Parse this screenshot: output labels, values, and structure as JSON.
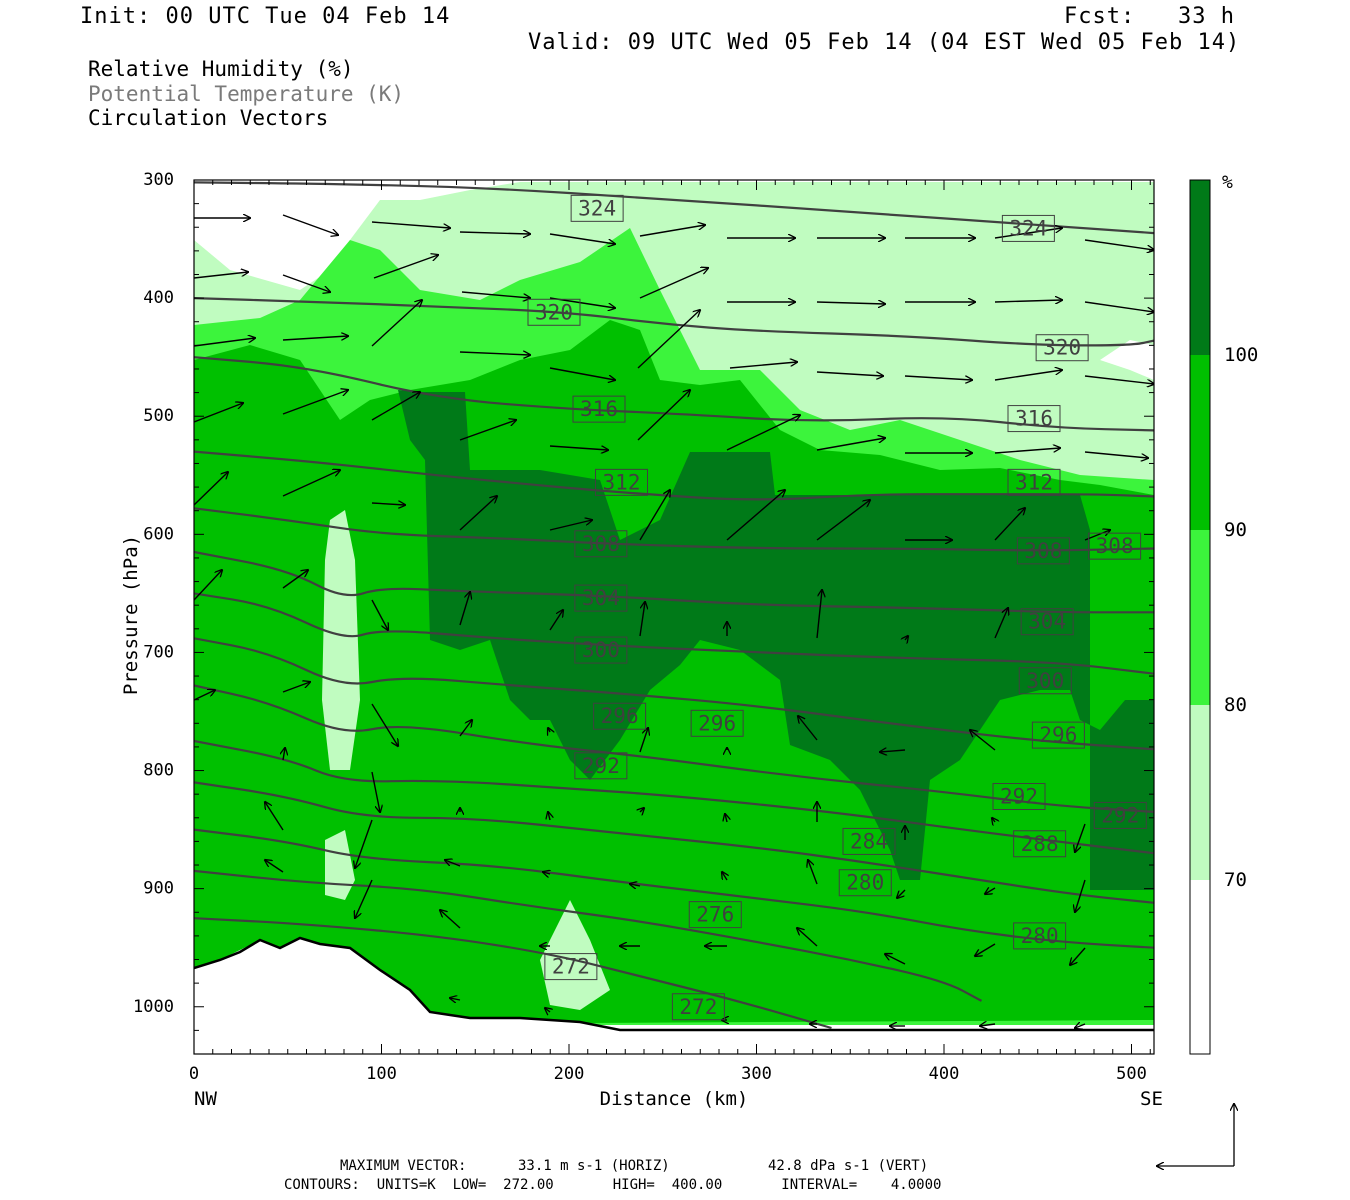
{
  "header": {
    "init": "Init: 00 UTC Tue 04 Feb 14",
    "fcst": "Fcst:   33 h",
    "valid": "Valid: 09 UTC Wed 05 Feb 14 (04 EST Wed 05 Feb 14)"
  },
  "fields": {
    "rh": "Relative Humidity (%)",
    "theta": "Potential Temperature (K)",
    "vectors": "Circulation Vectors"
  },
  "footer": {
    "vector_label": "MAXIMUM VECTOR:",
    "vector_horiz": "33.1 m s-1 (HORIZ)",
    "vector_vert": "42.8 dPa s-1 (VERT)",
    "contours": "CONTOURS:  UNITS=K  LOW=  272.00       HIGH=  400.00       INTERVAL=    4.0000"
  },
  "colors": {
    "rh_70_80": "#c0fcc0",
    "rh_80_90": "#3cf43c",
    "rh_90_100": "#00c000",
    "rh_100": "#007a18",
    "contour": "#404040",
    "vector": "#000000"
  },
  "chart_data": {
    "type": "heatmap",
    "xlabel": "Distance (km)",
    "ylabel": "Pressure (hPa)",
    "xlim": [
      0,
      512
    ],
    "ylim": [
      1040,
      300
    ],
    "x_ticks": [
      0,
      100,
      200,
      300,
      400,
      500
    ],
    "y_ticks": [
      300,
      400,
      500,
      600,
      700,
      800,
      900,
      1000
    ],
    "x_left_label": "NW",
    "x_right_label": "SE",
    "colorbar": {
      "unit": "%",
      "levels": [
        70,
        80,
        90,
        100
      ]
    },
    "contours": [
      {
        "value": 324,
        "label": "324",
        "points": [
          [
            0,
            302
          ],
          [
            60,
            303
          ],
          [
            150,
            306
          ],
          [
            250,
            316
          ],
          [
            350,
            327
          ],
          [
            450,
            338
          ],
          [
            512,
            345
          ]
        ],
        "labels_at": [
          [
            215,
            324
          ],
          [
            445,
            341
          ]
        ]
      },
      {
        "value": 320,
        "label": "320",
        "points": [
          [
            0,
            400
          ],
          [
            60,
            403
          ],
          [
            130,
            407
          ],
          [
            200,
            412
          ],
          [
            250,
            422
          ],
          [
            300,
            428
          ],
          [
            380,
            432
          ],
          [
            450,
            440
          ],
          [
            500,
            440
          ],
          [
            512,
            436
          ]
        ],
        "labels_at": [
          [
            192,
            412
          ],
          [
            463,
            442
          ]
        ]
      },
      {
        "value": 316,
        "label": "316",
        "points": [
          [
            0,
            450
          ],
          [
            60,
            458
          ],
          [
            130,
            485
          ],
          [
            200,
            494
          ],
          [
            260,
            498
          ],
          [
            330,
            505
          ],
          [
            400,
            500
          ],
          [
            460,
            510
          ],
          [
            512,
            512
          ]
        ],
        "labels_at": [
          [
            216,
            494
          ],
          [
            448,
            502
          ]
        ]
      },
      {
        "value": 312,
        "label": "312",
        "points": [
          [
            0,
            530
          ],
          [
            60,
            538
          ],
          [
            100,
            545
          ],
          [
            160,
            555
          ],
          [
            230,
            565
          ],
          [
            300,
            572
          ],
          [
            360,
            566
          ],
          [
            420,
            566
          ],
          [
            480,
            566
          ],
          [
            512,
            568
          ]
        ],
        "labels_at": [
          [
            228,
            556
          ],
          [
            448,
            556
          ]
        ]
      },
      {
        "value": 308,
        "label": "308",
        "points": [
          [
            0,
            578
          ],
          [
            50,
            588
          ],
          [
            100,
            600
          ],
          [
            160,
            603
          ],
          [
            220,
            608
          ],
          [
            300,
            612
          ],
          [
            380,
            612
          ],
          [
            450,
            614
          ],
          [
            512,
            612
          ]
        ],
        "labels_at": [
          [
            217,
            608
          ],
          [
            453,
            614
          ],
          [
            491,
            610
          ]
        ]
      },
      {
        "value": 304,
        "label": "304",
        "points": [
          [
            0,
            615
          ],
          [
            50,
            630
          ],
          [
            80,
            655
          ],
          [
            100,
            645
          ],
          [
            140,
            648
          ],
          [
            220,
            652
          ],
          [
            300,
            660
          ],
          [
            380,
            662
          ],
          [
            460,
            666
          ],
          [
            512,
            666
          ]
        ],
        "labels_at": [
          [
            217,
            654
          ],
          [
            455,
            674
          ]
        ]
      },
      {
        "value": 300,
        "label": "300",
        "points": [
          [
            0,
            650
          ],
          [
            40,
            660
          ],
          [
            80,
            690
          ],
          [
            100,
            680
          ],
          [
            160,
            688
          ],
          [
            220,
            694
          ],
          [
            300,
            700
          ],
          [
            380,
            705
          ],
          [
            460,
            708
          ],
          [
            512,
            718
          ]
        ],
        "labels_at": [
          [
            217,
            698
          ],
          [
            454,
            724
          ]
        ]
      },
      {
        "value": 296,
        "label": "296",
        "points": [
          [
            0,
            688
          ],
          [
            40,
            700
          ],
          [
            80,
            730
          ],
          [
            110,
            720
          ],
          [
            170,
            728
          ],
          [
            230,
            735
          ],
          [
            300,
            745
          ],
          [
            380,
            762
          ],
          [
            450,
            775
          ],
          [
            512,
            782
          ]
        ],
        "labels_at": [
          [
            227,
            754
          ],
          [
            279,
            760
          ],
          [
            461,
            770
          ]
        ]
      },
      {
        "value": 292,
        "label": "292",
        "points": [
          [
            0,
            728
          ],
          [
            40,
            742
          ],
          [
            80,
            770
          ],
          [
            110,
            760
          ],
          [
            180,
            778
          ],
          [
            240,
            788
          ],
          [
            320,
            805
          ],
          [
            400,
            818
          ],
          [
            460,
            830
          ],
          [
            512,
            835
          ]
        ],
        "labels_at": [
          [
            217,
            796
          ],
          [
            440,
            822
          ],
          [
            494,
            838
          ]
        ]
      },
      {
        "value": 288,
        "label": "288",
        "points": [
          [
            0,
            775
          ],
          [
            50,
            790
          ],
          [
            80,
            810
          ],
          [
            130,
            808
          ],
          [
            200,
            815
          ],
          [
            260,
            822
          ],
          [
            340,
            835
          ],
          [
            410,
            850
          ],
          [
            470,
            862
          ],
          [
            512,
            870
          ]
        ],
        "labels_at": [
          [
            451,
            862
          ]
        ]
      },
      {
        "value": 284,
        "label": "284",
        "points": [
          [
            0,
            810
          ],
          [
            50,
            822
          ],
          [
            90,
            840
          ],
          [
            150,
            840
          ],
          [
            220,
            852
          ],
          [
            300,
            865
          ],
          [
            360,
            878
          ],
          [
            420,
            893
          ],
          [
            470,
            905
          ],
          [
            512,
            912
          ]
        ],
        "labels_at": [
          [
            360,
            860
          ]
        ]
      },
      {
        "value": 280,
        "label": "280",
        "points": [
          [
            0,
            850
          ],
          [
            50,
            860
          ],
          [
            90,
            875
          ],
          [
            160,
            880
          ],
          [
            230,
            895
          ],
          [
            300,
            908
          ],
          [
            360,
            920
          ],
          [
            410,
            935
          ],
          [
            460,
            945
          ],
          [
            512,
            950
          ]
        ],
        "labels_at": [
          [
            358,
            895
          ],
          [
            451,
            940
          ]
        ]
      },
      {
        "value": 276,
        "label": "276",
        "points": [
          [
            0,
            885
          ],
          [
            60,
            895
          ],
          [
            120,
            900
          ],
          [
            180,
            915
          ],
          [
            240,
            928
          ],
          [
            300,
            945
          ],
          [
            350,
            960
          ],
          [
            400,
            978
          ],
          [
            420,
            995
          ]
        ],
        "labels_at": [
          [
            278,
            922
          ]
        ]
      },
      {
        "value": 272,
        "label": "272",
        "points": [
          [
            0,
            925
          ],
          [
            60,
            930
          ],
          [
            130,
            940
          ],
          [
            190,
            955
          ],
          [
            240,
            975
          ],
          [
            290,
            995
          ],
          [
            340,
            1018
          ]
        ],
        "labels_at": [
          [
            201,
            966
          ],
          [
            269,
            1000
          ]
        ]
      }
    ]
  }
}
